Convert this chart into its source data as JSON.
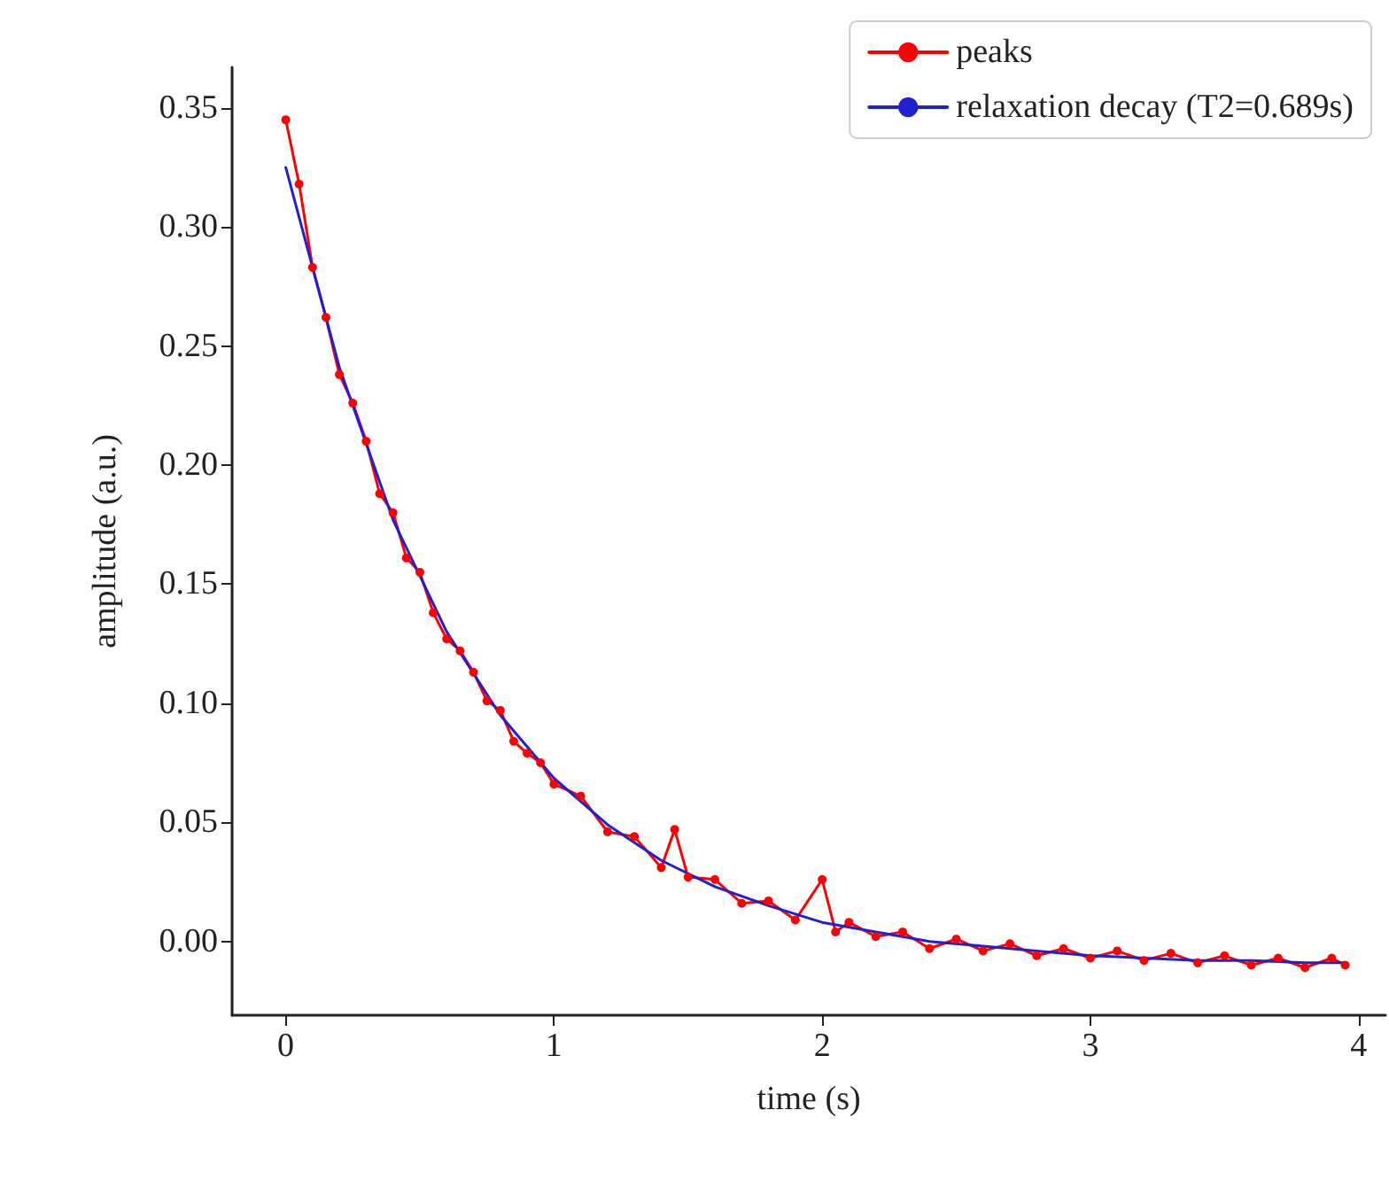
{
  "chart_data": {
    "type": "line",
    "xlabel": "time (s)",
    "ylabel": "amplitude (a.u.)",
    "xlim": [
      -0.2,
      4.1
    ],
    "ylim": [
      -0.031,
      0.367
    ],
    "xticks": [
      0,
      1,
      2,
      3,
      4
    ],
    "yticks": [
      {
        "value": 0,
        "label": "0.00"
      },
      {
        "value": 0.05,
        "label": "0.05"
      },
      {
        "value": 0.1,
        "label": "0.10"
      },
      {
        "value": 0.15,
        "label": "0.15"
      },
      {
        "value": 0.2,
        "label": "0.20"
      },
      {
        "value": 0.25,
        "label": "0.25"
      },
      {
        "value": 0.3,
        "label": "0.30"
      },
      {
        "value": 0.35,
        "label": "0.35"
      }
    ],
    "legend": "top right",
    "grid": false,
    "series": [
      {
        "name": "peaks",
        "color": "#ff0000",
        "marker": "circle",
        "x": [
          0,
          0.05,
          0.1,
          0.15,
          0.2,
          0.25,
          0.3,
          0.35,
          0.4,
          0.45,
          0.5,
          0.55,
          0.6,
          0.65,
          0.7,
          0.75,
          0.8,
          0.85,
          0.9,
          0.95,
          1.0,
          1.1,
          1.2,
          1.3,
          1.4,
          1.45,
          1.5,
          1.6,
          1.7,
          1.8,
          1.9,
          2.0,
          2.05,
          2.1,
          2.2,
          2.3,
          2.4,
          2.5,
          2.6,
          2.7,
          2.8,
          2.9,
          3.0,
          3.1,
          3.2,
          3.3,
          3.4,
          3.5,
          3.6,
          3.7,
          3.8,
          3.9,
          3.95
        ],
        "values": [
          0.345,
          0.318,
          0.283,
          0.262,
          0.238,
          0.226,
          0.21,
          0.188,
          0.18,
          0.161,
          0.155,
          0.138,
          0.127,
          0.122,
          0.113,
          0.101,
          0.097,
          0.084,
          0.079,
          0.075,
          0.066,
          0.061,
          0.046,
          0.044,
          0.031,
          0.047,
          0.027,
          0.026,
          0.016,
          0.017,
          0.009,
          0.026,
          0.004,
          0.008,
          0.002,
          0.004,
          -0.003,
          0.001,
          -0.004,
          -0.001,
          -0.006,
          -0.003,
          -0.007,
          -0.004,
          -0.008,
          -0.005,
          -0.009,
          -0.006,
          -0.01,
          -0.007,
          -0.011,
          -0.007,
          -0.01
        ]
      },
      {
        "name": "relaxation decay (T2=0.689s)",
        "color": "#2020d0",
        "marker": "none",
        "x": [
          0,
          0.2,
          0.4,
          0.6,
          0.8,
          1.0,
          1.2,
          1.4,
          1.6,
          1.8,
          2.0,
          2.2,
          2.4,
          2.6,
          2.8,
          3.0,
          3.2,
          3.4,
          3.6,
          3.8,
          3.95
        ],
        "values": [
          0.325,
          0.241,
          0.177,
          0.13,
          0.095,
          0.0685,
          0.049,
          0.034,
          0.023,
          0.015,
          0.008,
          0.004,
          0.0,
          -0.002,
          -0.004,
          -0.006,
          -0.007,
          -0.008,
          -0.008,
          -0.009,
          -0.009
        ]
      }
    ]
  }
}
